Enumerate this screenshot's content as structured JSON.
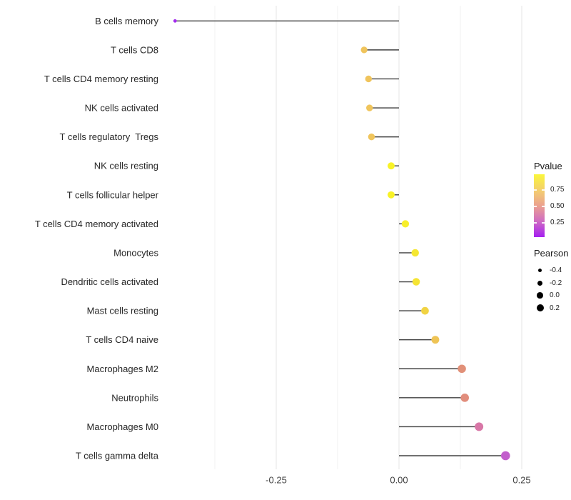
{
  "chart_data": {
    "type": "scatter",
    "variant": "horizontal-lollipop",
    "title": "",
    "xlabel": "",
    "ylabel": "",
    "grid": true,
    "legend_position": "right",
    "color_encodes": "Pvalue",
    "size_encodes": "Pearson",
    "xlim": [
      -0.48,
      0.26
    ],
    "x_ticks": [
      {
        "label": "-0.25",
        "value": -0.25
      },
      {
        "label": "0.00",
        "value": 0.0
      },
      {
        "label": "0.25",
        "value": 0.25
      }
    ],
    "minor_gridlines": [
      -0.375,
      -0.125,
      0.125
    ],
    "points": [
      {
        "label": "B cells memory",
        "pearson": -0.456,
        "color": "#A32BEE",
        "pvalue_est": 0.03
      },
      {
        "label": "T cells CD8",
        "pearson": -0.071,
        "color": "#F0C45C",
        "pvalue_est": 0.74
      },
      {
        "label": "T cells CD4 memory resting",
        "pearson": -0.062,
        "color": "#F0C45C",
        "pvalue_est": 0.74
      },
      {
        "label": "NK cells activated",
        "pearson": -0.06,
        "color": "#F0C55C",
        "pvalue_est": 0.73
      },
      {
        "label": "T cells regulatory  Tregs",
        "pearson": -0.056,
        "color": "#F0C55C",
        "pvalue_est": 0.73
      },
      {
        "label": "NK cells resting",
        "pearson": -0.016,
        "color": "#F8F226",
        "pvalue_est": 0.95
      },
      {
        "label": "T cells follicular helper",
        "pearson": -0.016,
        "color": "#F8F226",
        "pvalue_est": 0.95
      },
      {
        "label": "T cells CD4 memory activated",
        "pearson": 0.013,
        "color": "#F7EE2B",
        "pvalue_est": 0.93
      },
      {
        "label": "Monocytes",
        "pearson": 0.033,
        "color": "#F5E731",
        "pvalue_est": 0.9
      },
      {
        "label": "Dendritic cells activated",
        "pearson": 0.035,
        "color": "#F5E434",
        "pvalue_est": 0.89
      },
      {
        "label": "Mast cells resting",
        "pearson": 0.053,
        "color": "#F1D343",
        "pvalue_est": 0.84
      },
      {
        "label": "T cells CD4 naive",
        "pearson": 0.074,
        "color": "#EFC455",
        "pvalue_est": 0.75
      },
      {
        "label": "Macrophages M2",
        "pearson": 0.128,
        "color": "#E19078",
        "pvalue_est": 0.55
      },
      {
        "label": "Neutrophils",
        "pearson": 0.134,
        "color": "#E18D7C",
        "pvalue_est": 0.54
      },
      {
        "label": "Macrophages M0",
        "pearson": 0.163,
        "color": "#D877A7",
        "pvalue_est": 0.42
      },
      {
        "label": "T cells gamma delta",
        "pearson": 0.217,
        "color": "#C25FCC",
        "pvalue_est": 0.26
      }
    ]
  },
  "legend": {
    "pvalue": {
      "title": "Pvalue",
      "ticks": [
        "0.75",
        "0.50",
        "0.25"
      ],
      "gradient": [
        "#FAF63B",
        "#F3CC71",
        "#EBA18F",
        "#D16FC0",
        "#A51FF0"
      ]
    },
    "pearson": {
      "title": "Pearson",
      "items": [
        "-0.4",
        "-0.2",
        "0.0",
        "0.2"
      ]
    }
  },
  "colors": {
    "stem": "#404040",
    "grid_major": "#E6E6E6",
    "grid_minor": "#F2F2F2"
  }
}
